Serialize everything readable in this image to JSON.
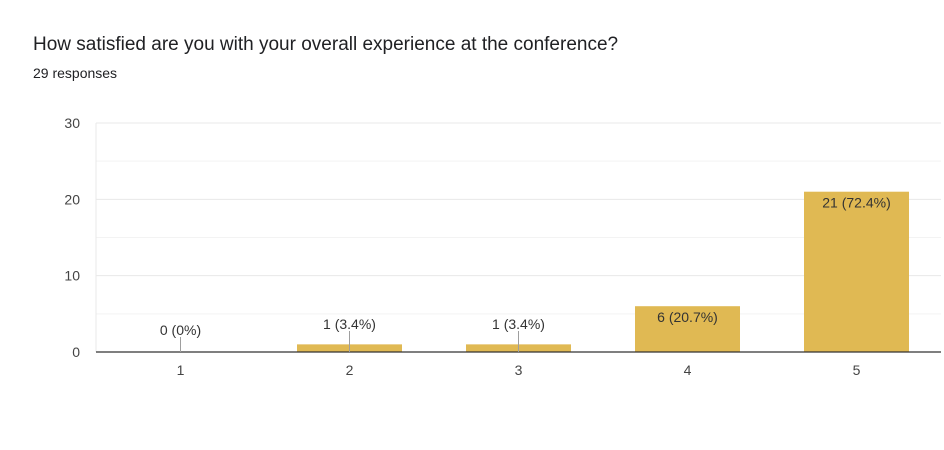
{
  "question": {
    "title": "How satisfied are you with your overall experience at the conference?",
    "responses": "29 responses"
  },
  "colors": {
    "bar": "#e0b953",
    "grid_major": "#e8e8e8",
    "grid_minor": "#f3f3f3",
    "axis": "#333333",
    "leader": "#9e9e9e"
  },
  "chart_data": {
    "type": "bar",
    "categories": [
      "1",
      "2",
      "3",
      "4",
      "5"
    ],
    "values": [
      0,
      1,
      1,
      6,
      21
    ],
    "data_labels": [
      "0 (0%)",
      "1 (3.4%)",
      "1 (3.4%)",
      "6 (20.7%)",
      "21 (72.4%)"
    ],
    "ylim": [
      0,
      30
    ],
    "y_ticks": [
      0,
      10,
      20,
      30
    ],
    "grid": true,
    "legend": "none"
  }
}
